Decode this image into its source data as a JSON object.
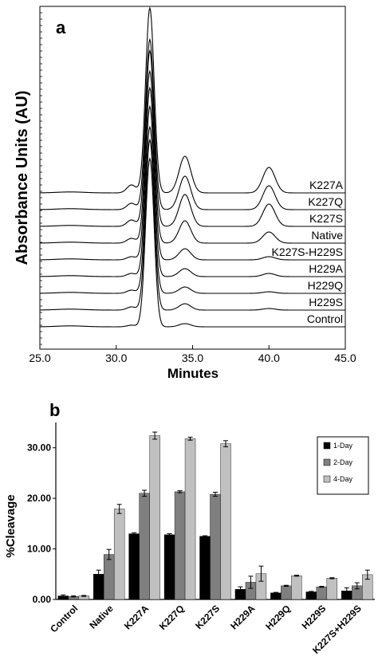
{
  "chart_data": [
    {
      "type": "line",
      "panel_label": "a",
      "xlabel": "Minutes",
      "ylabel": "Absorbance Units (AU)",
      "xlim": [
        25.0,
        45.0
      ],
      "x_ticks": [
        "25.0",
        "30.0",
        "35.0",
        "40.0",
        "45.0"
      ],
      "grid": false,
      "traces": [
        {
          "name": "K227A",
          "main_peak": 1.0,
          "peak_34": 0.23,
          "peak_40": 0.16,
          "peak_31": 0.05
        },
        {
          "name": "K227Q",
          "main_peak": 0.92,
          "peak_34": 0.21,
          "peak_40": 0.15,
          "peak_31": 0.04
        },
        {
          "name": "K227S",
          "main_peak": 0.95,
          "peak_34": 0.2,
          "peak_40": 0.14,
          "peak_31": 0.04
        },
        {
          "name": "Native",
          "main_peak": 0.93,
          "peak_34": 0.14,
          "peak_40": 0.07,
          "peak_31": 0.03
        },
        {
          "name": "K227S-H229S",
          "main_peak": 0.93,
          "peak_34": 0.07,
          "peak_40": 0.02,
          "peak_31": 0.02
        },
        {
          "name": "H229A",
          "main_peak": 0.92,
          "peak_34": 0.05,
          "peak_40": 0.02,
          "peak_31": 0.02
        },
        {
          "name": "H229Q",
          "main_peak": 0.9,
          "peak_34": 0.04,
          "peak_40": 0.01,
          "peak_31": 0.02
        },
        {
          "name": "H229S",
          "main_peak": 0.92,
          "peak_34": 0.04,
          "peak_40": 0.01,
          "peak_31": 0.02
        },
        {
          "name": "Control",
          "main_peak": 0.91,
          "peak_34": 0.02,
          "peak_40": 0.0,
          "peak_31": 0.01
        }
      ]
    },
    {
      "type": "bar",
      "panel_label": "b",
      "ylabel": "%Cleavage",
      "xlabel": "",
      "ylim": [
        0,
        35
      ],
      "y_ticks": [
        "0.00",
        "10.00",
        "20.00",
        "30.00"
      ],
      "legend_position": "top-right",
      "categories": [
        "Control",
        "Native",
        "K227A",
        "K227Q",
        "K227S",
        "H229A",
        "H229Q",
        "H229S",
        "K227S+H229S"
      ],
      "series": [
        {
          "name": "1-Day",
          "color": "#000000",
          "values": [
            0.7,
            5.0,
            13.0,
            12.8,
            12.5,
            2.0,
            1.3,
            1.5,
            1.7
          ],
          "errors": [
            0.2,
            0.8,
            0.2,
            0.2,
            0.1,
            0.5,
            0.1,
            0.1,
            0.6
          ]
        },
        {
          "name": "2-Day",
          "color": "#7f7f7f",
          "values": [
            0.6,
            8.9,
            21.0,
            21.3,
            20.8,
            3.4,
            2.7,
            2.5,
            2.7
          ],
          "errors": [
            0.1,
            1.0,
            0.6,
            0.2,
            0.4,
            1.2,
            0.1,
            0.1,
            0.6
          ]
        },
        {
          "name": "4-Day",
          "color": "#c0c0c0",
          "values": [
            0.7,
            17.9,
            32.4,
            31.8,
            30.8,
            5.1,
            4.7,
            4.2,
            4.9
          ],
          "errors": [
            0.1,
            0.9,
            0.7,
            0.3,
            0.6,
            1.5,
            0.1,
            0.1,
            0.9
          ]
        }
      ]
    }
  ]
}
